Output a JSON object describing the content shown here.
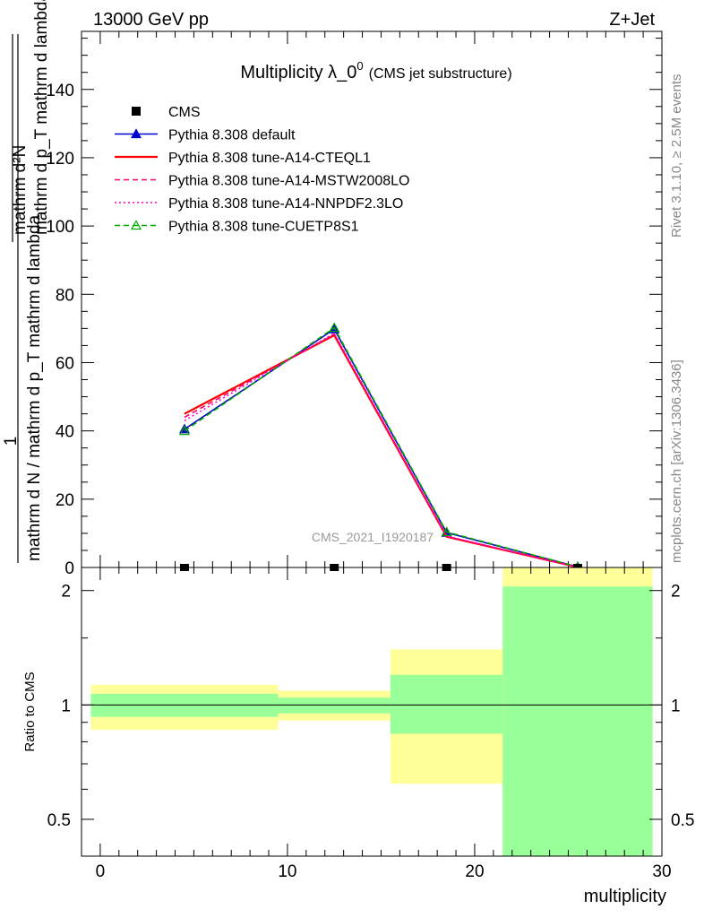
{
  "header": {
    "energy_label": "13000 GeV pp",
    "process_label": "Z+Jet"
  },
  "side_labels": {
    "rivet": "Rivet 3.1.10, ≥ 2.5M events",
    "mcplots": "mcplots.cern.ch [arXiv:1306.3436]"
  },
  "chart_data": [
    {
      "type": "line",
      "title": "Multiplicity λ_0",
      "title_superscript": "0",
      "title_suffix": "(CMS jet substructure)",
      "watermark": "CMS_2021_I1920187",
      "ylabel_numerator": "1",
      "ylabel_denominator": "mathrm d N / mathrm d p_T mathrm d lambda",
      "ylabel_top": "mathrm d²N",
      "ylabel_bottom": "mathrm d p_T mathrm d lambda",
      "xlim": [
        -1,
        30
      ],
      "ylim": [
        0,
        157
      ],
      "y_ticks": [
        0,
        20,
        40,
        60,
        80,
        100,
        120,
        140
      ],
      "y_tick_labels": [
        "0",
        "20",
        "40",
        "60",
        "80",
        "100",
        "120",
        "140"
      ],
      "x": [
        4.5,
        12.5,
        18.5,
        25.5
      ],
      "cms_points": [
        {
          "x": 4.5,
          "y": 0.0
        },
        {
          "x": 12.5,
          "y": 0.0
        },
        {
          "x": 18.5,
          "y": 0.0
        },
        {
          "x": 25.5,
          "y": 0.0
        }
      ],
      "series": [
        {
          "name": "CMS",
          "color": "#000000",
          "style": "marker-square"
        },
        {
          "name": "Pythia 8.308 default",
          "color": "#0000cc",
          "style": "solid-triangle",
          "values": [
            40.5,
            69.8,
            10.2,
            0.2
          ]
        },
        {
          "name": "Pythia 8.308 tune-A14-CTEQL1",
          "color": "#ff0000",
          "style": "solid",
          "values": [
            45.0,
            68.0,
            9.0,
            0.1
          ]
        },
        {
          "name": "Pythia 8.308 tune-A14-MSTW2008LO",
          "color": "#ff0066",
          "style": "dashed",
          "values": [
            44.0,
            68.3,
            9.1,
            0.1
          ]
        },
        {
          "name": "Pythia 8.308 tune-A14-NNPDF2.3LO",
          "color": "#ff00cc",
          "style": "dotted",
          "values": [
            43.0,
            68.6,
            9.2,
            0.1
          ]
        },
        {
          "name": "Pythia 8.308 tune-CUETP8S1",
          "color": "#00aa00",
          "style": "dashed-open-triangle",
          "values": [
            40.0,
            70.2,
            10.4,
            0.2
          ]
        }
      ]
    },
    {
      "type": "area",
      "ylabel": "Ratio to CMS",
      "xlabel": "multiplicity",
      "scale": "log",
      "ylim": [
        0.4,
        2.3
      ],
      "y_ticks": [
        0.5,
        1,
        2
      ],
      "y_tick_labels": [
        "0.5",
        "1",
        "2"
      ],
      "x_ticks": [
        0,
        10,
        20,
        30
      ],
      "x_tick_labels": [
        "0",
        "10",
        "20",
        "30"
      ],
      "reference": 1,
      "bins": [
        {
          "x_low": -0.5,
          "x_high": 9.5,
          "green": [
            0.93,
            1.07
          ],
          "yellow": [
            0.86,
            1.13
          ]
        },
        {
          "x_low": 9.5,
          "x_high": 15.5,
          "green": [
            0.95,
            1.045
          ],
          "yellow": [
            0.91,
            1.09
          ]
        },
        {
          "x_low": 15.5,
          "x_high": 21.5,
          "green": [
            0.84,
            1.2
          ],
          "yellow": [
            0.62,
            1.4
          ]
        },
        {
          "x_low": 21.5,
          "x_high": 29.5,
          "green": [
            0.4,
            2.05
          ],
          "yellow": [
            0.4,
            2.3
          ]
        }
      ]
    }
  ]
}
